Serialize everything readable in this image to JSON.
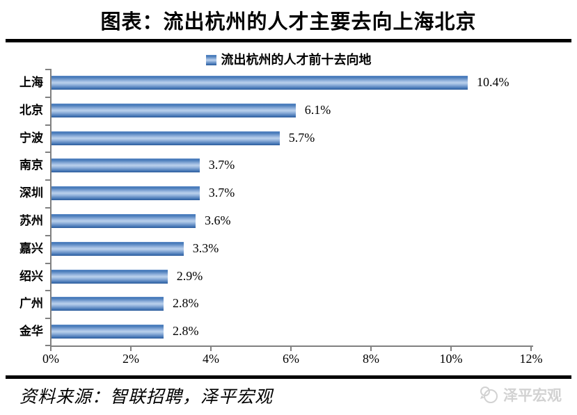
{
  "page": {
    "title": "图表：流出杭州的人才主要去向上海北京",
    "source_note": "资料来源：智联招聘，泽平宏观",
    "watermark_label": "泽平宏观"
  },
  "chart_data": {
    "type": "bar",
    "orientation": "horizontal",
    "title": "流出杭州的人才前十去向地",
    "legend": [
      "流出杭州的人才前十去向地"
    ],
    "legend_position": "top-center",
    "categories": [
      "上海",
      "北京",
      "宁波",
      "南京",
      "深圳",
      "苏州",
      "嘉兴",
      "绍兴",
      "广州",
      "金华"
    ],
    "values": [
      10.4,
      6.1,
      5.7,
      3.7,
      3.7,
      3.6,
      3.3,
      2.9,
      2.8,
      2.8
    ],
    "data_labels": [
      "10.4%",
      "6.1%",
      "5.7%",
      "3.7%",
      "3.7%",
      "3.6%",
      "3.3%",
      "2.9%",
      "2.8%",
      "2.8%"
    ],
    "x_ticks": [
      "0%",
      "2%",
      "4%",
      "6%",
      "8%",
      "10%",
      "12%"
    ],
    "xlim": [
      0,
      12
    ],
    "grid": false,
    "bar_color_main": "#4f81bd",
    "bar_gradient": [
      "#4478b8",
      "#bad1ec",
      "#2d5c99"
    ],
    "axis_color": "#808080"
  }
}
